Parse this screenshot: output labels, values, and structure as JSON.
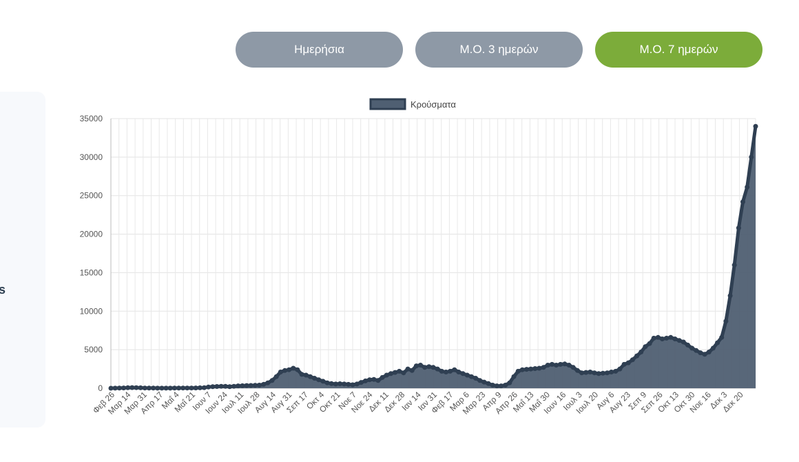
{
  "buttons": {
    "daily_label": "Ημερήσια",
    "ma3_label": "Μ.Ο. 3 ημερών",
    "ma7_label": "Μ.Ο. 7 ημερών",
    "active": "ma7",
    "active_color": "#7cac3a",
    "inactive_color": "#8e99a6"
  },
  "left_panel": {
    "glyph": "s"
  },
  "chart_data": {
    "type": "area",
    "legend": {
      "label": "Κρούσματα",
      "position": "top"
    },
    "grid": true,
    "ylim": [
      0,
      35000
    ],
    "yticks": [
      0,
      5000,
      10000,
      15000,
      20000,
      25000,
      30000,
      35000
    ],
    "xtick_labels": [
      "Φεβ 26",
      "Μαρ 14",
      "Μαρ 31",
      "Απρ 17",
      "Μαΐ 4",
      "Μαΐ 21",
      "Ιουν 7",
      "Ιουν 24",
      "Ιουλ 11",
      "Ιουλ 28",
      "Αυγ 14",
      "Αυγ 31",
      "Σεπ 17",
      "Οκτ 4",
      "Οκτ 21",
      "Νοε 7",
      "Νοε 24",
      "Δεκ 11",
      "Δεκ 28",
      "Ιαν 14",
      "Ιαν 31",
      "Φεβ 17",
      "Μαρ 6",
      "Μαρ 23",
      "Απρ 9",
      "Απρ 26",
      "Μαΐ 13",
      "Μαΐ 30",
      "Ιουν 16",
      "Ιουλ 3",
      "Ιουλ 20",
      "Αυγ 6",
      "Αυγ 23",
      "Σεπ 9",
      "Σεπ 26",
      "Οκτ 13",
      "Οκτ 30",
      "Νοε 16",
      "Δεκ 3",
      "Δεκ 20"
    ],
    "line_color": "#2f3f52",
    "fill_color": "#4f5f72",
    "series": [
      {
        "name": "Κρούσματα",
        "values": [
          0,
          5,
          20,
          40,
          60,
          80,
          70,
          50,
          30,
          20,
          15,
          10,
          10,
          10,
          10,
          15,
          20,
          25,
          30,
          30,
          40,
          50,
          70,
          150,
          200,
          220,
          250,
          240,
          200,
          250,
          300,
          320,
          350,
          360,
          380,
          400,
          500,
          700,
          1000,
          1500,
          2100,
          2300,
          2400,
          2600,
          2400,
          1800,
          1700,
          1500,
          1300,
          1100,
          900,
          700,
          600,
          550,
          580,
          550,
          500,
          450,
          550,
          750,
          950,
          1100,
          1150,
          1000,
          1400,
          1700,
          1900,
          2050,
          2200,
          2000,
          2500,
          2300,
          2900,
          3000,
          2700,
          2800,
          2700,
          2500,
          2200,
          2100,
          2200,
          2400,
          2100,
          1900,
          1700,
          1500,
          1300,
          1000,
          800,
          600,
          400,
          300,
          300,
          400,
          700,
          1500,
          2200,
          2400,
          2450,
          2500,
          2550,
          2600,
          2700,
          3000,
          3100,
          3000,
          3100,
          3150,
          3000,
          2700,
          2300,
          2000,
          2050,
          2100,
          2000,
          1900,
          1950,
          2000,
          2100,
          2200,
          2500,
          3100,
          3300,
          3700,
          4200,
          4700,
          5400,
          5800,
          6500,
          6600,
          6400,
          6500,
          6600,
          6400,
          6200,
          6000,
          5600,
          5200,
          4900,
          4600,
          4400,
          4700,
          5200,
          5900,
          6600,
          8700,
          12000,
          16000,
          20800,
          24200,
          26100,
          30000,
          34000
        ]
      }
    ]
  }
}
